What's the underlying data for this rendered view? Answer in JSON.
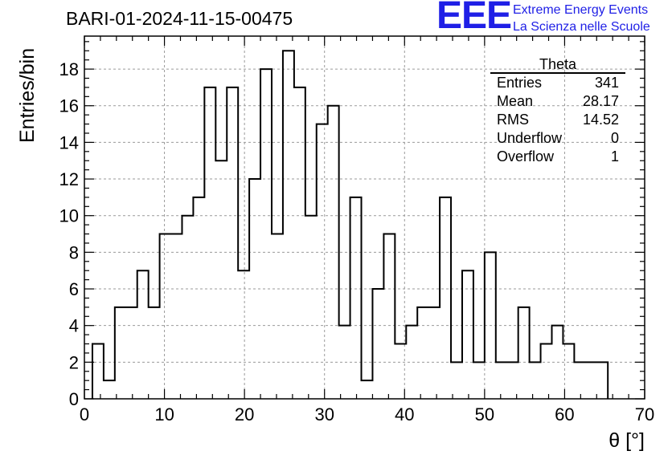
{
  "header": {
    "run_id": "BARI-01-2024-11-15-00475",
    "logo_text": "EEE",
    "logo_line1": "Extreme Energy Events",
    "logo_line2": "La Scienza nelle Scuole"
  },
  "stats_box": {
    "title": "Theta",
    "rows": [
      {
        "label": "Entries",
        "value": "341"
      },
      {
        "label": "Mean",
        "value": "28.17"
      },
      {
        "label": "RMS",
        "value": "14.52"
      },
      {
        "label": "Underflow",
        "value": "0"
      },
      {
        "label": "Overflow",
        "value": "1"
      }
    ]
  },
  "chart_data": {
    "type": "bar",
    "style": "step-histogram",
    "title": "BARI-01-2024-11-15-00475",
    "xlabel": "θ [°]",
    "ylabel": "Entries/bin",
    "xlim": [
      0,
      70
    ],
    "ylim": [
      0,
      19.8
    ],
    "xticks": [
      0,
      10,
      20,
      30,
      40,
      50,
      60,
      70
    ],
    "yticks": [
      0,
      2,
      4,
      6,
      8,
      10,
      12,
      14,
      16,
      18
    ],
    "grid": true,
    "bin_width": 1.4,
    "bin_start": 1.0,
    "values": [
      3,
      1,
      5,
      5,
      7,
      5,
      9,
      9,
      10,
      11,
      17,
      13,
      17,
      7,
      12,
      18,
      9,
      19,
      17,
      10,
      15,
      16,
      4,
      11,
      1,
      6,
      9,
      3,
      4,
      5,
      5,
      11,
      2,
      7,
      2,
      8,
      2,
      2,
      5,
      2,
      3,
      4,
      3,
      2,
      2,
      2
    ]
  }
}
